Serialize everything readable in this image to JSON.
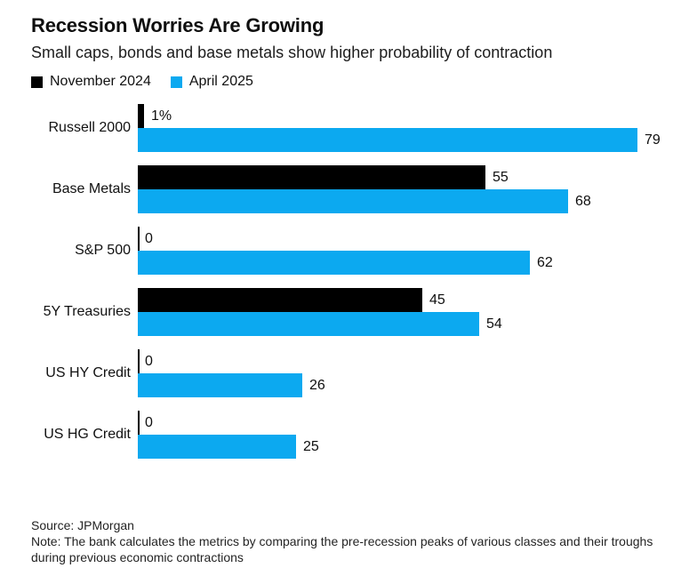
{
  "chart_data": {
    "type": "bar",
    "orientation": "horizontal",
    "title": "Recession Worries Are Growing",
    "subtitle": "Small caps, bonds and base metals show higher probability of contraction",
    "categories": [
      "Russell 2000",
      "Base Metals",
      "S&P 500",
      "5Y Treasuries",
      "US HY Credit",
      "US HG Credit"
    ],
    "series": [
      {
        "name": "November 2024",
        "color": "#000000",
        "values": [
          1,
          55,
          0,
          45,
          0,
          0
        ],
        "labels": [
          "1%",
          "55",
          "0",
          "45",
          "0",
          "0"
        ]
      },
      {
        "name": "April 2025",
        "color": "#0CA9F0",
        "values": [
          79,
          68,
          62,
          54,
          26,
          25
        ],
        "labels": [
          "79",
          "68",
          "62",
          "54",
          "26",
          "25"
        ]
      }
    ],
    "xlim": [
      0,
      79
    ],
    "legend_position": "top-left",
    "grid": false,
    "source": "Source: JPMorgan",
    "note": "Note: The bank calculates the metrics by comparing the pre-recession peaks of various classes and their troughs during previous economic contractions"
  }
}
